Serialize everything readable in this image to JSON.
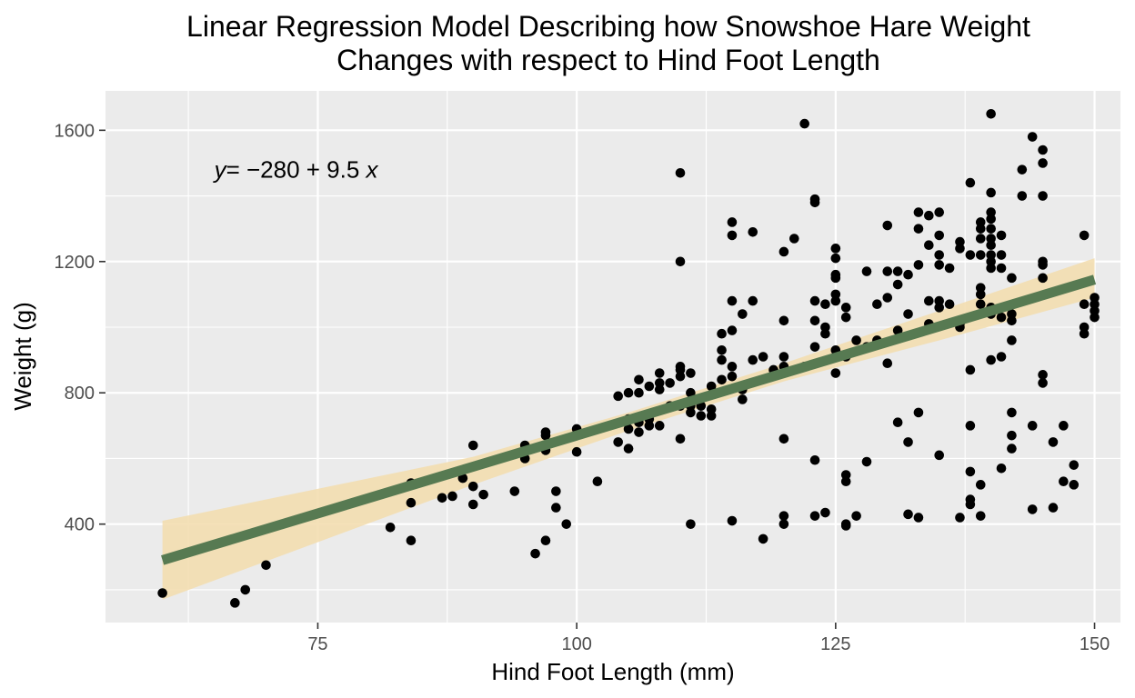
{
  "chart_data": {
    "type": "scatter",
    "title_lines": [
      "Linear Regression Model Describing how Snowshoe Hare Weight",
      "Changes with respect to Hind Foot Length"
    ],
    "xlabel": "Hind Foot Length (mm)",
    "ylabel": "Weight (g)",
    "xlim": [
      54.5,
      152.5
    ],
    "ylim": [
      100,
      1720
    ],
    "x_ticks": [
      75,
      100,
      125,
      150
    ],
    "y_ticks": [
      400,
      800,
      1200,
      1600
    ],
    "grid": true,
    "equation": {
      "var_y": "y",
      "rest": "= −280 + 9.5 ",
      "var_x": "x",
      "x": 65,
      "y": 1480
    },
    "regression": {
      "intercept": -280,
      "slope": 9.5,
      "x_range": [
        60,
        150
      ],
      "line_color": "#577a52",
      "ribbon_color": "#f3deb0",
      "ribbon": [
        {
          "x": 60,
          "lo": 170,
          "hi": 410
        },
        {
          "x": 90,
          "lo": 520,
          "hi": 605
        },
        {
          "x": 105,
          "lo": 685,
          "hi": 740
        },
        {
          "x": 120,
          "lo": 835,
          "hi": 890
        },
        {
          "x": 135,
          "lo": 960,
          "hi": 1050
        },
        {
          "x": 150,
          "lo": 1090,
          "hi": 1210
        }
      ]
    },
    "point_color": "#000000",
    "points": [
      [
        60,
        190
      ],
      [
        67,
        160
      ],
      [
        68,
        200
      ],
      [
        70,
        275
      ],
      [
        82,
        390
      ],
      [
        84,
        350
      ],
      [
        84,
        465
      ],
      [
        84,
        525
      ],
      [
        87,
        480
      ],
      [
        88,
        485
      ],
      [
        89,
        540
      ],
      [
        90,
        460
      ],
      [
        90,
        515
      ],
      [
        90,
        640
      ],
      [
        91,
        490
      ],
      [
        94,
        500
      ],
      [
        95,
        600
      ],
      [
        95,
        640
      ],
      [
        96,
        310
      ],
      [
        97,
        350
      ],
      [
        97,
        625
      ],
      [
        97,
        670
      ],
      [
        97,
        680
      ],
      [
        98,
        450
      ],
      [
        98,
        500
      ],
      [
        99,
        400
      ],
      [
        100,
        620
      ],
      [
        100,
        690
      ],
      [
        102,
        530
      ],
      [
        104,
        650
      ],
      [
        104,
        790
      ],
      [
        105,
        630
      ],
      [
        105,
        690
      ],
      [
        105,
        720
      ],
      [
        105,
        800
      ],
      [
        106,
        680
      ],
      [
        106,
        710
      ],
      [
        106,
        800
      ],
      [
        106,
        840
      ],
      [
        107,
        700
      ],
      [
        107,
        720
      ],
      [
        107,
        820
      ],
      [
        108,
        700
      ],
      [
        108,
        810
      ],
      [
        108,
        830
      ],
      [
        108,
        860
      ],
      [
        109,
        760
      ],
      [
        109,
        830
      ],
      [
        110,
        660
      ],
      [
        110,
        760
      ],
      [
        110,
        850
      ],
      [
        110,
        870
      ],
      [
        110,
        880
      ],
      [
        110,
        1200
      ],
      [
        110,
        1470
      ],
      [
        111,
        400
      ],
      [
        111,
        740
      ],
      [
        111,
        760
      ],
      [
        111,
        800
      ],
      [
        111,
        860
      ],
      [
        112,
        730
      ],
      [
        112,
        760
      ],
      [
        113,
        730
      ],
      [
        113,
        750
      ],
      [
        113,
        820
      ],
      [
        114,
        840
      ],
      [
        114,
        900
      ],
      [
        114,
        930
      ],
      [
        114,
        980
      ],
      [
        115,
        410
      ],
      [
        115,
        850
      ],
      [
        115,
        880
      ],
      [
        115,
        990
      ],
      [
        115,
        1080
      ],
      [
        115,
        1280
      ],
      [
        115,
        1320
      ],
      [
        116,
        780
      ],
      [
        116,
        810
      ],
      [
        116,
        1040
      ],
      [
        117,
        900
      ],
      [
        117,
        1080
      ],
      [
        117,
        1290
      ],
      [
        118,
        355
      ],
      [
        118,
        910
      ],
      [
        119,
        870
      ],
      [
        120,
        400
      ],
      [
        120,
        425
      ],
      [
        120,
        660
      ],
      [
        120,
        880
      ],
      [
        120,
        910
      ],
      [
        120,
        1020
      ],
      [
        120,
        1230
      ],
      [
        121,
        1270
      ],
      [
        122,
        880
      ],
      [
        122,
        1620
      ],
      [
        123,
        425
      ],
      [
        123,
        595
      ],
      [
        123,
        940
      ],
      [
        123,
        1020
      ],
      [
        123,
        1080
      ],
      [
        123,
        1380
      ],
      [
        123,
        1390
      ],
      [
        124,
        435
      ],
      [
        124,
        980
      ],
      [
        124,
        1000
      ],
      [
        124,
        1070
      ],
      [
        125,
        860
      ],
      [
        125,
        930
      ],
      [
        125,
        1080
      ],
      [
        125,
        1100
      ],
      [
        125,
        1150
      ],
      [
        125,
        1160
      ],
      [
        125,
        1210
      ],
      [
        125,
        1240
      ],
      [
        126,
        395
      ],
      [
        126,
        400
      ],
      [
        126,
        530
      ],
      [
        126,
        550
      ],
      [
        126,
        910
      ],
      [
        126,
        1030
      ],
      [
        126,
        1060
      ],
      [
        127,
        425
      ],
      [
        127,
        960
      ],
      [
        128,
        590
      ],
      [
        128,
        940
      ],
      [
        128,
        1170
      ],
      [
        129,
        960
      ],
      [
        129,
        1070
      ],
      [
        130,
        890
      ],
      [
        130,
        1090
      ],
      [
        130,
        1170
      ],
      [
        130,
        1310
      ],
      [
        131,
        710
      ],
      [
        131,
        990
      ],
      [
        131,
        1130
      ],
      [
        131,
        1170
      ],
      [
        132,
        430
      ],
      [
        132,
        650
      ],
      [
        132,
        1040
      ],
      [
        132,
        1160
      ],
      [
        133,
        420
      ],
      [
        133,
        740
      ],
      [
        133,
        1190
      ],
      [
        133,
        1300
      ],
      [
        133,
        1350
      ],
      [
        134,
        1010
      ],
      [
        134,
        1080
      ],
      [
        134,
        1250
      ],
      [
        134,
        1340
      ],
      [
        135,
        610
      ],
      [
        135,
        1060
      ],
      [
        135,
        1080
      ],
      [
        135,
        1190
      ],
      [
        135,
        1220
      ],
      [
        135,
        1280
      ],
      [
        135,
        1350
      ],
      [
        136,
        1070
      ],
      [
        136,
        1180
      ],
      [
        137,
        420
      ],
      [
        137,
        1000
      ],
      [
        137,
        1010
      ],
      [
        137,
        1240
      ],
      [
        137,
        1260
      ],
      [
        138,
        460
      ],
      [
        138,
        475
      ],
      [
        138,
        560
      ],
      [
        138,
        700
      ],
      [
        138,
        870
      ],
      [
        138,
        1220
      ],
      [
        138,
        1440
      ],
      [
        139,
        425
      ],
      [
        139,
        520
      ],
      [
        139,
        1070
      ],
      [
        139,
        1100
      ],
      [
        139,
        1120
      ],
      [
        139,
        1220
      ],
      [
        139,
        1270
      ],
      [
        139,
        1300
      ],
      [
        139,
        1320
      ],
      [
        140,
        900
      ],
      [
        140,
        1040
      ],
      [
        140,
        1060
      ],
      [
        140,
        1180
      ],
      [
        140,
        1200
      ],
      [
        140,
        1220
      ],
      [
        140,
        1250
      ],
      [
        140,
        1270
      ],
      [
        140,
        1300
      ],
      [
        140,
        1330
      ],
      [
        140,
        1350
      ],
      [
        140,
        1410
      ],
      [
        140,
        1650
      ],
      [
        141,
        570
      ],
      [
        141,
        910
      ],
      [
        141,
        1030
      ],
      [
        141,
        1180
      ],
      [
        141,
        1220
      ],
      [
        141,
        1280
      ],
      [
        142,
        630
      ],
      [
        142,
        670
      ],
      [
        142,
        740
      ],
      [
        142,
        960
      ],
      [
        142,
        1020
      ],
      [
        142,
        1040
      ],
      [
        142,
        1150
      ],
      [
        143,
        1400
      ],
      [
        143,
        1480
      ],
      [
        144,
        445
      ],
      [
        144,
        700
      ],
      [
        144,
        1580
      ],
      [
        145,
        830
      ],
      [
        145,
        855
      ],
      [
        145,
        1150
      ],
      [
        145,
        1190
      ],
      [
        145,
        1200
      ],
      [
        145,
        1400
      ],
      [
        145,
        1500
      ],
      [
        145,
        1540
      ],
      [
        146,
        450
      ],
      [
        146,
        650
      ],
      [
        147,
        530
      ],
      [
        147,
        700
      ],
      [
        148,
        520
      ],
      [
        148,
        580
      ],
      [
        149,
        980
      ],
      [
        149,
        1000
      ],
      [
        149,
        1070
      ],
      [
        149,
        1280
      ],
      [
        150,
        1030
      ],
      [
        150,
        1050
      ],
      [
        150,
        1070
      ],
      [
        150,
        1090
      ]
    ]
  }
}
